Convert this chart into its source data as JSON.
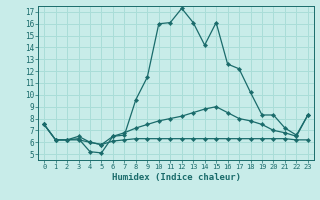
{
  "xlabel": "Humidex (Indice chaleur)",
  "xlim": [
    -0.5,
    23.5
  ],
  "ylim": [
    4.5,
    17.5
  ],
  "xticks": [
    0,
    1,
    2,
    3,
    4,
    5,
    6,
    7,
    8,
    9,
    10,
    11,
    12,
    13,
    14,
    15,
    16,
    17,
    18,
    19,
    20,
    21,
    22,
    23
  ],
  "yticks": [
    5,
    6,
    7,
    8,
    9,
    10,
    11,
    12,
    13,
    14,
    15,
    16,
    17
  ],
  "bg_color": "#c8ece9",
  "grid_color": "#aaddd8",
  "line_color": "#1a6b6b",
  "line1_x": [
    0,
    1,
    2,
    3,
    4,
    5,
    6,
    7,
    8,
    9,
    10,
    11,
    12,
    13,
    14,
    15,
    16,
    17,
    18,
    19,
    20,
    21,
    22,
    23
  ],
  "line1_y": [
    7.5,
    6.2,
    6.2,
    6.3,
    5.2,
    5.1,
    6.5,
    6.6,
    9.6,
    11.5,
    16.0,
    16.1,
    17.3,
    16.1,
    14.2,
    16.1,
    12.6,
    12.2,
    10.2,
    8.3,
    8.3,
    7.2,
    6.6,
    8.3
  ],
  "line2_x": [
    0,
    1,
    2,
    3,
    4,
    5,
    6,
    7,
    8,
    9,
    10,
    11,
    12,
    13,
    14,
    15,
    16,
    17,
    18,
    19,
    20,
    21,
    22,
    23
  ],
  "line2_y": [
    7.5,
    6.2,
    6.2,
    6.5,
    6.0,
    5.8,
    6.5,
    6.8,
    7.2,
    7.5,
    7.8,
    8.0,
    8.2,
    8.5,
    8.8,
    9.0,
    8.5,
    8.0,
    7.8,
    7.5,
    7.0,
    6.8,
    6.5,
    8.3
  ],
  "line3_x": [
    0,
    1,
    2,
    3,
    4,
    5,
    6,
    7,
    8,
    9,
    10,
    11,
    12,
    13,
    14,
    15,
    16,
    17,
    18,
    19,
    20,
    21,
    22,
    23
  ],
  "line3_y": [
    7.5,
    6.2,
    6.2,
    6.2,
    6.0,
    5.8,
    6.1,
    6.2,
    6.3,
    6.3,
    6.3,
    6.3,
    6.3,
    6.3,
    6.3,
    6.3,
    6.3,
    6.3,
    6.3,
    6.3,
    6.3,
    6.3,
    6.2,
    6.2
  ]
}
